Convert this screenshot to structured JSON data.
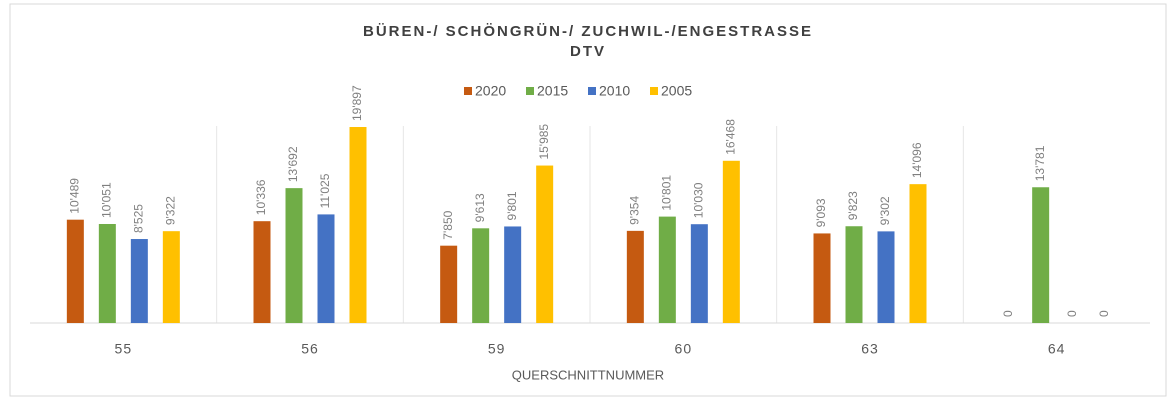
{
  "chart_data": {
    "type": "bar",
    "title": "BÜREN-/ SCHÖNGRÜN-/ ZUCHWIL-/ENGESTRASSE",
    "subtitle": "DTV",
    "x_label": "QUERSCHNITTNUMMER",
    "categories": [
      "55",
      "56",
      "59",
      "60",
      "63",
      "64"
    ],
    "series": [
      {
        "name": "2020",
        "color": "#c55a11",
        "values": [
          10489,
          10336,
          7850,
          9354,
          9093,
          0
        ],
        "value_labels": [
          "10'489",
          "10'336",
          "7'850",
          "9'354",
          "9'093",
          "0"
        ]
      },
      {
        "name": "2015",
        "color": "#70ad47",
        "values": [
          10051,
          13692,
          9613,
          10801,
          9823,
          13781
        ],
        "value_labels": [
          "10'051",
          "13'692",
          "9'613",
          "10'801",
          "9'823",
          "13'781"
        ]
      },
      {
        "name": "2010",
        "color": "#4472c4",
        "values": [
          8525,
          11025,
          9801,
          10030,
          9302,
          0
        ],
        "value_labels": [
          "8'525",
          "11'025",
          "9'801",
          "10'030",
          "9'302",
          "0"
        ]
      },
      {
        "name": "2005",
        "color": "#ffc000",
        "values": [
          9322,
          19897,
          15985,
          16468,
          14096,
          0
        ],
        "value_labels": [
          "9'322",
          "19'897",
          "15'985",
          "16'468",
          "14'096",
          "0"
        ]
      }
    ],
    "ylim": [
      0,
      20000
    ],
    "legend": "top"
  }
}
